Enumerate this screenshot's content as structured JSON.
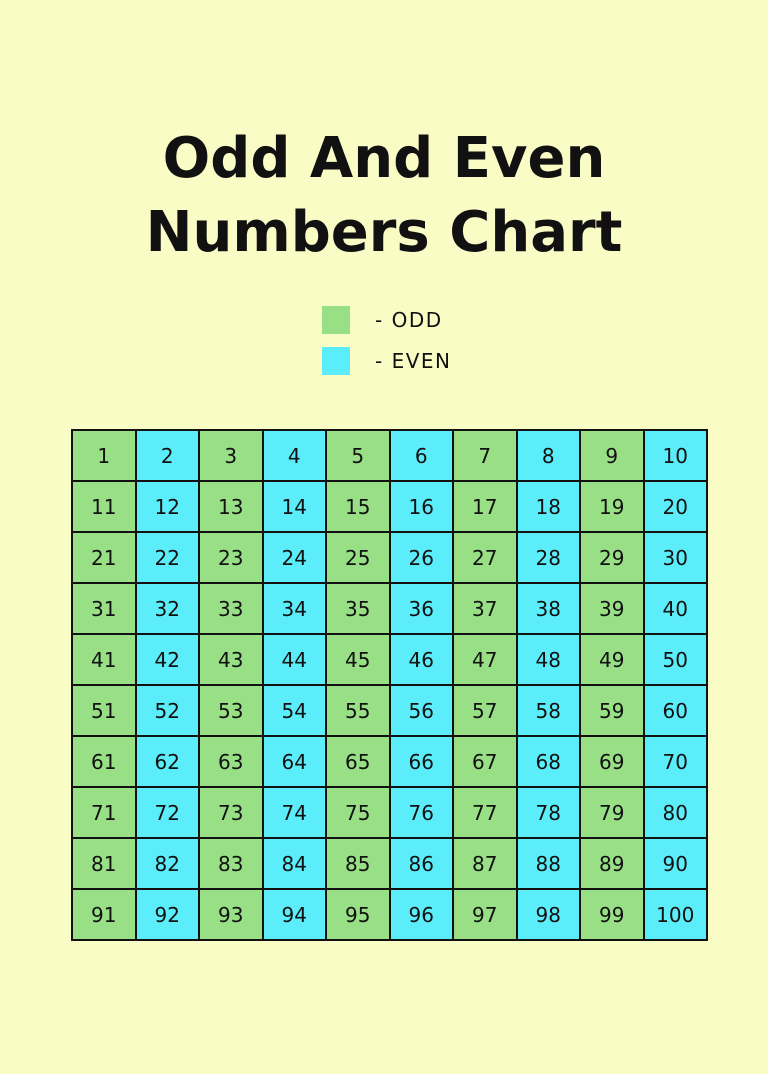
{
  "title_line1": "Odd And Even",
  "title_line2": "Numbers Chart",
  "legend": [
    {
      "label": "- ODD",
      "color": "#98df86"
    },
    {
      "label": "- EVEN",
      "color": "#5cedfa"
    }
  ],
  "chart_data": {
    "type": "table",
    "title": "Odd And Even Numbers Chart",
    "colors": {
      "odd": "#98df86",
      "even": "#5cedfa"
    },
    "rows": [
      [
        1,
        2,
        3,
        4,
        5,
        6,
        7,
        8,
        9,
        10
      ],
      [
        11,
        12,
        13,
        14,
        15,
        16,
        17,
        18,
        19,
        20
      ],
      [
        21,
        22,
        23,
        24,
        25,
        26,
        27,
        28,
        29,
        30
      ],
      [
        31,
        32,
        33,
        34,
        35,
        36,
        37,
        38,
        39,
        40
      ],
      [
        41,
        42,
        43,
        44,
        45,
        46,
        47,
        48,
        49,
        50
      ],
      [
        51,
        52,
        53,
        54,
        55,
        56,
        57,
        58,
        59,
        60
      ],
      [
        61,
        62,
        63,
        64,
        65,
        66,
        67,
        68,
        69,
        70
      ],
      [
        71,
        72,
        73,
        74,
        75,
        76,
        77,
        78,
        79,
        80
      ],
      [
        81,
        82,
        83,
        84,
        85,
        86,
        87,
        88,
        89,
        90
      ],
      [
        91,
        92,
        93,
        94,
        95,
        96,
        97,
        98,
        99,
        100
      ]
    ]
  }
}
